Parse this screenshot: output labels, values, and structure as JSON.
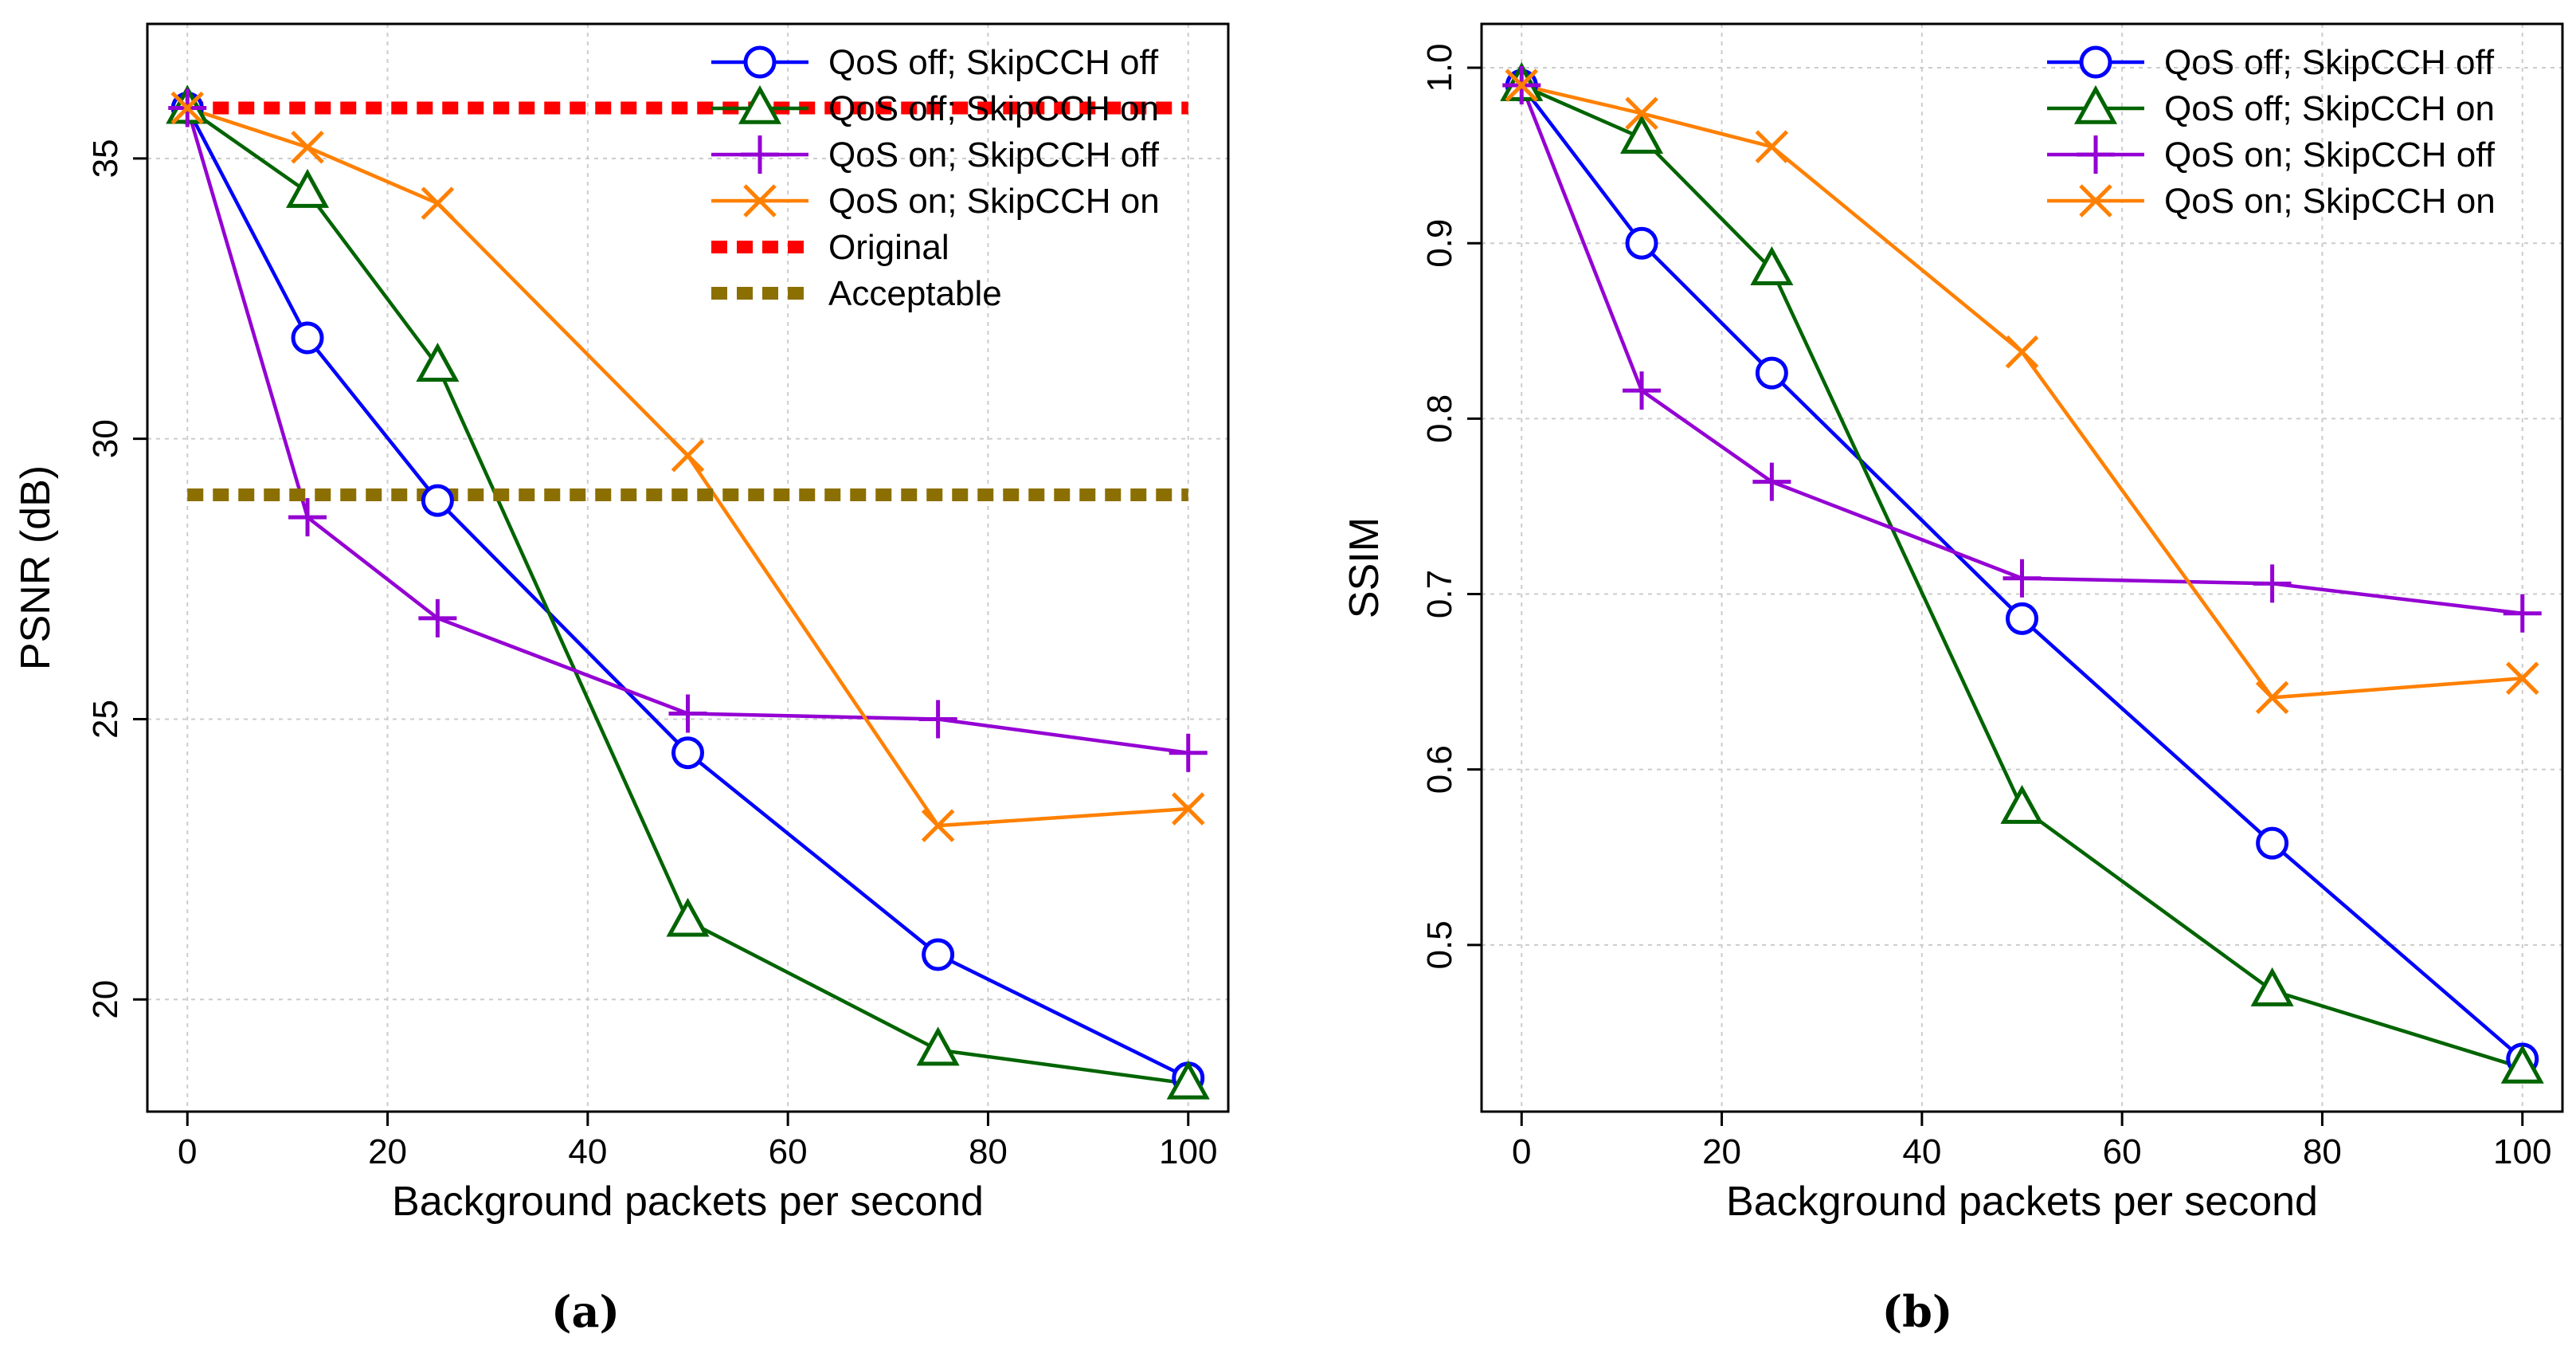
{
  "chart_data": [
    {
      "type": "line",
      "panel_label": "(a)",
      "title": "",
      "xlabel": "Background packets per second",
      "ylabel": "PSNR (dB)",
      "xlim": [
        -4,
        104
      ],
      "ylim": [
        18.0,
        37.4
      ],
      "xticks": [
        0,
        20,
        40,
        60,
        80,
        100
      ],
      "yticks": [
        20,
        25,
        30,
        35
      ],
      "grid": true,
      "legend_position": "top-right",
      "x": [
        0,
        12,
        25,
        50,
        75,
        100
      ],
      "series": [
        {
          "name": "QoS off; SkipCCH off",
          "color": "#0000ff",
          "marker": "circle",
          "values": [
            35.9,
            31.8,
            28.9,
            24.4,
            20.8,
            18.6
          ]
        },
        {
          "name": "QoS off; SkipCCH on",
          "color": "#006400",
          "marker": "triangle",
          "values": [
            35.9,
            34.4,
            31.3,
            21.4,
            19.1,
            18.5
          ]
        },
        {
          "name": "QoS on; SkipCCH off",
          "color": "#9400d3",
          "marker": "plus",
          "values": [
            35.9,
            28.6,
            26.8,
            25.1,
            25.0,
            24.4
          ]
        },
        {
          "name": "QoS on; SkipCCH on",
          "color": "#ff8000",
          "marker": "cross",
          "values": [
            35.9,
            35.2,
            34.2,
            29.7,
            23.1,
            23.4
          ]
        },
        {
          "name": "Original",
          "color": "#ff0000",
          "style": "dashed",
          "x": [
            0,
            100
          ],
          "values": [
            35.9,
            35.9
          ]
        },
        {
          "name": "Acceptable",
          "color": "#8b6f00",
          "style": "dashed",
          "x": [
            0,
            100
          ],
          "values": [
            29.0,
            29.0
          ]
        }
      ]
    },
    {
      "type": "line",
      "panel_label": "(b)",
      "title": "",
      "xlabel": "Background packets per second",
      "ylabel": "SSIM",
      "xlim": [
        -4,
        104
      ],
      "ylim": [
        0.405,
        1.025
      ],
      "xticks": [
        0,
        20,
        40,
        60,
        80,
        100
      ],
      "yticks": [
        0.5,
        0.6,
        0.7,
        0.8,
        0.9,
        1.0
      ],
      "ytick_labels": [
        "0.5",
        "0.6",
        "0.7",
        "0.8",
        "0.9",
        "1.0"
      ],
      "grid": true,
      "legend_position": "top-right",
      "x": [
        0,
        12,
        25,
        50,
        75,
        100
      ],
      "series": [
        {
          "name": "QoS off; SkipCCH off",
          "color": "#0000ff",
          "marker": "circle",
          "values": [
            0.99,
            0.9,
            0.826,
            0.686,
            0.558,
            0.435
          ]
        },
        {
          "name": "QoS off; SkipCCH on",
          "color": "#006400",
          "marker": "triangle",
          "values": [
            0.99,
            0.96,
            0.885,
            0.578,
            0.474,
            0.43
          ]
        },
        {
          "name": "QoS on; SkipCCH off",
          "color": "#9400d3",
          "marker": "plus",
          "values": [
            0.99,
            0.816,
            0.764,
            0.709,
            0.706,
            0.689
          ]
        },
        {
          "name": "QoS on; SkipCCH on",
          "color": "#ff8000",
          "marker": "cross",
          "values": [
            0.99,
            0.974,
            0.955,
            0.838,
            0.641,
            0.652
          ]
        }
      ]
    }
  ]
}
